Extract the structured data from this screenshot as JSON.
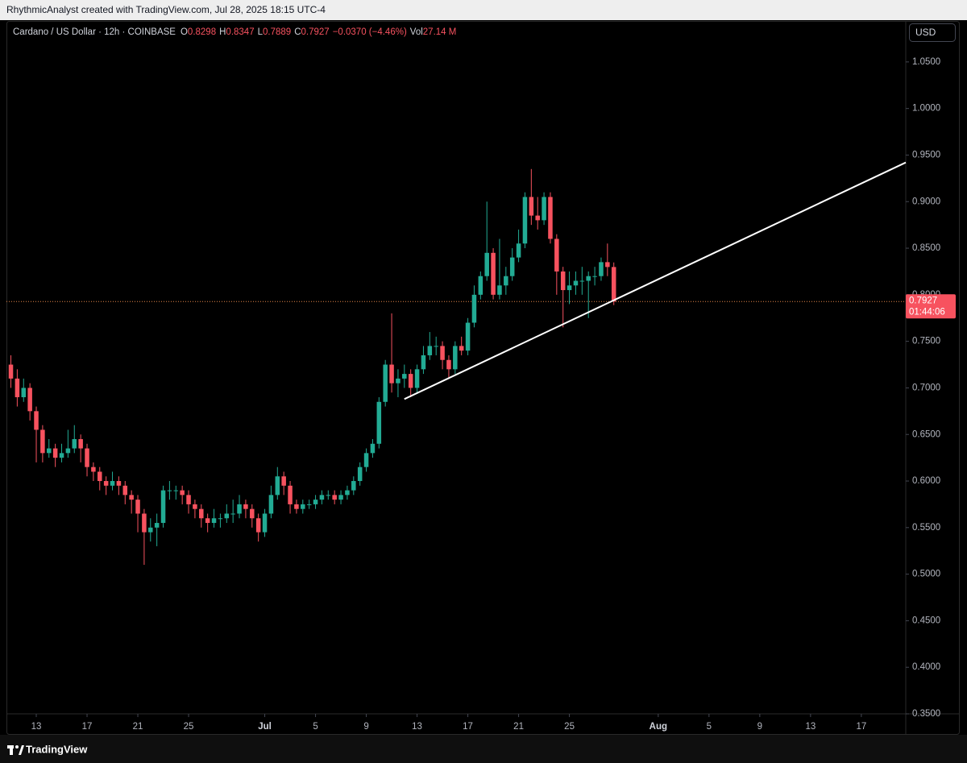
{
  "header": "RhythmicAnalyst created with TradingView.com, Jul 28, 2025 18:15 UTC-4",
  "footer": "TradingView",
  "chart_data": {
    "type": "candlestick",
    "symbol": "Cardano / US Dollar · 12h · COINBASE",
    "ohlc_legend": [
      {
        "key": "O",
        "value": "0.8298"
      },
      {
        "key": "H",
        "value": "0.8347"
      },
      {
        "key": "L",
        "value": "0.7889"
      },
      {
        "key": "C",
        "value": "0.7927"
      }
    ],
    "change": "−0.0370 (−4.46%)",
    "volume_key": "Vol",
    "volume": "27.14 M",
    "currency": "USD",
    "up_color": "#22ab94",
    "down_color": "#f7525f",
    "x": [
      11,
      11.5,
      12,
      12.5,
      13,
      13.5,
      14,
      14.5,
      15,
      15.5,
      16,
      16.5,
      17,
      17.5,
      18,
      18.5,
      19,
      19.5,
      20,
      20.5,
      21,
      21.5,
      22,
      22.5,
      23,
      23.5,
      24,
      24.5,
      25,
      25.5,
      26,
      26.5,
      27,
      27.5,
      28,
      28.5,
      29,
      29.5,
      30,
      30.5,
      31,
      31.5,
      32,
      32.5,
      33,
      33.5,
      34,
      34.5,
      35,
      35.5,
      36,
      36.5,
      37,
      37.5,
      38,
      38.5,
      39,
      39.5,
      40,
      40.5,
      41,
      41.5,
      42,
      42.5,
      43,
      43.5,
      44,
      44.5,
      45,
      45.5,
      46,
      46.5,
      47,
      47.5,
      48,
      48.5,
      49,
      49.5,
      50,
      50.5,
      51,
      51.5,
      52,
      52.5,
      53,
      53.5,
      54,
      54.5,
      55,
      55.5,
      56,
      56.5,
      57,
      57.5,
      58,
      58.5
    ],
    "open": [
      0.725,
      0.71,
      0.69,
      0.7,
      0.675,
      0.655,
      0.63,
      0.635,
      0.625,
      0.63,
      0.635,
      0.645,
      0.635,
      0.615,
      0.61,
      0.6,
      0.595,
      0.6,
      0.595,
      0.585,
      0.58,
      0.565,
      0.545,
      0.55,
      0.555,
      0.59,
      0.59,
      0.59,
      0.585,
      0.575,
      0.57,
      0.56,
      0.555,
      0.56,
      0.56,
      0.565,
      0.565,
      0.575,
      0.57,
      0.56,
      0.545,
      0.565,
      0.585,
      0.605,
      0.595,
      0.575,
      0.57,
      0.575,
      0.575,
      0.58,
      0.585,
      0.585,
      0.58,
      0.585,
      0.59,
      0.6,
      0.615,
      0.63,
      0.64,
      0.685,
      0.725,
      0.705,
      0.71,
      0.715,
      0.7,
      0.72,
      0.735,
      0.745,
      0.745,
      0.73,
      0.72,
      0.745,
      0.74,
      0.77,
      0.8,
      0.82,
      0.845,
      0.8,
      0.81,
      0.82,
      0.84,
      0.855,
      0.905,
      0.885,
      0.88,
      0.905,
      0.86,
      0.825,
      0.805,
      0.81,
      0.815,
      0.815,
      0.82,
      0.82,
      0.835,
      0.8298
    ],
    "high": [
      0.735,
      0.72,
      0.71,
      0.705,
      0.68,
      0.66,
      0.645,
      0.64,
      0.64,
      0.655,
      0.66,
      0.65,
      0.64,
      0.62,
      0.615,
      0.605,
      0.61,
      0.605,
      0.6,
      0.59,
      0.585,
      0.57,
      0.56,
      0.565,
      0.595,
      0.6,
      0.595,
      0.595,
      0.59,
      0.58,
      0.575,
      0.565,
      0.57,
      0.565,
      0.575,
      0.58,
      0.585,
      0.58,
      0.575,
      0.565,
      0.57,
      0.595,
      0.615,
      0.61,
      0.6,
      0.58,
      0.58,
      0.58,
      0.585,
      0.59,
      0.59,
      0.59,
      0.59,
      0.595,
      0.605,
      0.62,
      0.635,
      0.645,
      0.69,
      0.73,
      0.78,
      0.72,
      0.725,
      0.72,
      0.725,
      0.745,
      0.76,
      0.755,
      0.75,
      0.735,
      0.75,
      0.755,
      0.775,
      0.81,
      0.825,
      0.9,
      0.85,
      0.86,
      0.83,
      0.85,
      0.87,
      0.91,
      0.935,
      0.905,
      0.91,
      0.91,
      0.865,
      0.83,
      0.825,
      0.825,
      0.83,
      0.825,
      0.83,
      0.84,
      0.855,
      0.8347
    ],
    "low": [
      0.7,
      0.68,
      0.685,
      0.665,
      0.62,
      0.62,
      0.625,
      0.615,
      0.62,
      0.625,
      0.63,
      0.62,
      0.605,
      0.6,
      0.59,
      0.585,
      0.59,
      0.585,
      0.575,
      0.565,
      0.545,
      0.51,
      0.535,
      0.53,
      0.55,
      0.58,
      0.58,
      0.575,
      0.565,
      0.56,
      0.55,
      0.545,
      0.55,
      0.55,
      0.555,
      0.555,
      0.56,
      0.56,
      0.55,
      0.535,
      0.54,
      0.56,
      0.58,
      0.585,
      0.565,
      0.565,
      0.565,
      0.57,
      0.57,
      0.575,
      0.58,
      0.575,
      0.575,
      0.58,
      0.585,
      0.595,
      0.61,
      0.625,
      0.635,
      0.68,
      0.695,
      0.69,
      0.7,
      0.69,
      0.695,
      0.715,
      0.73,
      0.735,
      0.72,
      0.71,
      0.715,
      0.735,
      0.735,
      0.765,
      0.795,
      0.815,
      0.795,
      0.795,
      0.8,
      0.815,
      0.835,
      0.85,
      0.875,
      0.87,
      0.875,
      0.855,
      0.8,
      0.765,
      0.79,
      0.8,
      0.8,
      0.775,
      0.81,
      0.815,
      0.82,
      0.7889
    ],
    "close": [
      0.71,
      0.69,
      0.7,
      0.675,
      0.655,
      0.63,
      0.635,
      0.625,
      0.63,
      0.635,
      0.645,
      0.635,
      0.615,
      0.61,
      0.6,
      0.595,
      0.6,
      0.595,
      0.585,
      0.58,
      0.565,
      0.545,
      0.55,
      0.555,
      0.59,
      0.59,
      0.59,
      0.585,
      0.575,
      0.57,
      0.56,
      0.555,
      0.56,
      0.56,
      0.565,
      0.565,
      0.575,
      0.57,
      0.56,
      0.545,
      0.565,
      0.585,
      0.605,
      0.595,
      0.575,
      0.57,
      0.575,
      0.575,
      0.58,
      0.585,
      0.585,
      0.58,
      0.585,
      0.59,
      0.6,
      0.615,
      0.63,
      0.64,
      0.685,
      0.725,
      0.705,
      0.71,
      0.715,
      0.7,
      0.72,
      0.735,
      0.745,
      0.745,
      0.73,
      0.72,
      0.745,
      0.74,
      0.77,
      0.8,
      0.82,
      0.845,
      0.8,
      0.81,
      0.82,
      0.84,
      0.855,
      0.905,
      0.885,
      0.88,
      0.905,
      0.86,
      0.825,
      0.805,
      0.81,
      0.815,
      0.815,
      0.82,
      0.82,
      0.835,
      0.8298,
      0.7927
    ],
    "xlim": [
      10.65,
      81.5
    ],
    "ylim": [
      0.35,
      1.094
    ],
    "xticks": [
      13,
      17,
      21,
      25,
      {
        "value": 31,
        "label": "Jul"
      },
      {
        "value": 35,
        "label": "5"
      },
      {
        "value": 39,
        "label": "9"
      },
      {
        "value": 43,
        "label": "13"
      },
      {
        "value": 47,
        "label": "17"
      },
      {
        "value": 51,
        "label": "21"
      },
      {
        "value": 55,
        "label": "25"
      },
      {
        "value": 62,
        "label": "Aug"
      },
      {
        "value": 66,
        "label": "5"
      },
      {
        "value": 70,
        "label": "9"
      },
      {
        "value": 74,
        "label": "13"
      },
      {
        "value": 78,
        "label": "17"
      }
    ],
    "yticks": [
      {
        "value": 0.35,
        "label": "0.3500"
      },
      {
        "value": 0.4,
        "label": "0.4000"
      },
      {
        "value": 0.45,
        "label": "0.4500"
      },
      {
        "value": 0.5,
        "label": "0.5000"
      },
      {
        "value": 0.55,
        "label": "0.5500"
      },
      {
        "value": 0.6,
        "label": "0.6000"
      },
      {
        "value": 0.65,
        "label": "0.6500"
      },
      {
        "value": 0.7,
        "label": "0.7000"
      },
      {
        "value": 0.75,
        "label": "0.7500"
      },
      {
        "value": 0.8,
        "label": "0.8000"
      },
      {
        "value": 0.85,
        "label": "0.8500"
      },
      {
        "value": 0.9,
        "label": "0.9000"
      },
      {
        "value": 0.95,
        "label": "0.9500"
      },
      {
        "value": 1.0,
        "label": "1.0000"
      },
      {
        "value": 1.05,
        "label": "1.0500"
      }
    ],
    "trendline": {
      "x": [
        42,
        81.5
      ],
      "y": [
        0.688,
        0.942
      ],
      "color": "#ffffff"
    },
    "last_price": {
      "value": 0.7927,
      "label": "0.7927",
      "countdown": "01:44:06",
      "color": "#f7525f"
    }
  }
}
